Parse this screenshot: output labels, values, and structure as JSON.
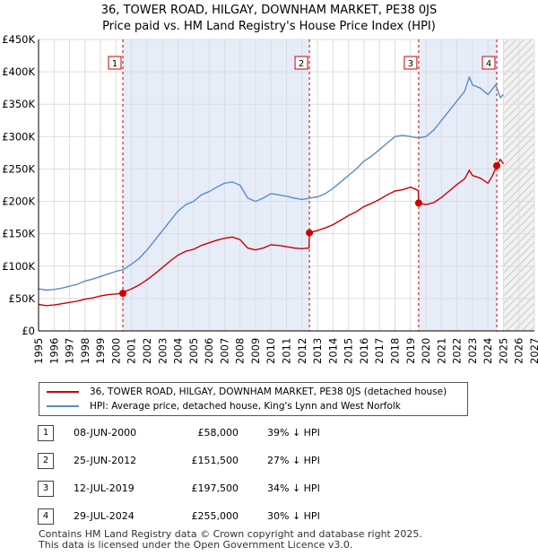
{
  "chart_data": {
    "type": "line",
    "title": "36, TOWER ROAD, HILGAY, DOWNHAM MARKET, PE38 0JS",
    "subtitle": "Price paid vs. HM Land Registry's House Price Index (HPI)",
    "xlim": [
      1995,
      2027
    ],
    "ylim": [
      0,
      450000
    ],
    "yticks": [
      {
        "value": 0,
        "label": "£0"
      },
      {
        "value": 50000,
        "label": "£50K"
      },
      {
        "value": 100000,
        "label": "£100K"
      },
      {
        "value": 150000,
        "label": "£150K"
      },
      {
        "value": 200000,
        "label": "£200K"
      },
      {
        "value": 250000,
        "label": "£250K"
      },
      {
        "value": 300000,
        "label": "£300K"
      },
      {
        "value": 350000,
        "label": "£350K"
      },
      {
        "value": 400000,
        "label": "£400K"
      },
      {
        "value": 450000,
        "label": "£450K"
      }
    ],
    "xticks": [
      "1995",
      "1996",
      "1997",
      "1998",
      "1999",
      "2000",
      "2001",
      "2002",
      "2003",
      "2004",
      "2005",
      "2006",
      "2007",
      "2008",
      "2009",
      "2010",
      "2011",
      "2012",
      "2013",
      "2014",
      "2015",
      "2016",
      "2017",
      "2018",
      "2019",
      "2020",
      "2021",
      "2022",
      "2023",
      "2024",
      "2025",
      "2026",
      "2027"
    ],
    "shaded_periods": [
      [
        2000.44,
        2012.48
      ],
      [
        2019.53,
        2024.57
      ]
    ],
    "forecast_start": 2025.0,
    "series": [
      {
        "name": "HPI: Average price, detached house, King's Lynn and West Norfolk",
        "color": "#5b8cc8",
        "x": [
          1995.0,
          1995.5,
          1996.0,
          1996.5,
          1997.0,
          1997.5,
          1998.0,
          1998.5,
          1999.0,
          1999.5,
          2000.0,
          2000.5,
          2001.0,
          2001.5,
          2002.0,
          2002.5,
          2003.0,
          2003.5,
          2004.0,
          2004.5,
          2005.0,
          2005.5,
          2006.0,
          2006.5,
          2007.0,
          2007.5,
          2008.0,
          2008.5,
          2009.0,
          2009.5,
          2010.0,
          2010.5,
          2011.0,
          2011.5,
          2012.0,
          2012.5,
          2013.0,
          2013.5,
          2014.0,
          2014.5,
          2015.0,
          2015.5,
          2016.0,
          2016.5,
          2017.0,
          2017.5,
          2018.0,
          2018.5,
          2019.0,
          2019.5,
          2020.0,
          2020.5,
          2021.0,
          2021.5,
          2022.0,
          2022.5,
          2022.8,
          2023.0,
          2023.5,
          2024.0,
          2024.5,
          2024.8,
          2025.0
        ],
        "values": [
          65000,
          63000,
          64000,
          66000,
          69000,
          72000,
          77000,
          80000,
          84000,
          88000,
          92000,
          95000,
          103000,
          112000,
          125000,
          140000,
          155000,
          170000,
          185000,
          195000,
          200000,
          210000,
          215000,
          222000,
          228000,
          230000,
          225000,
          205000,
          200000,
          205000,
          212000,
          210000,
          208000,
          205000,
          203000,
          205000,
          207000,
          212000,
          220000,
          230000,
          240000,
          250000,
          262000,
          270000,
          280000,
          290000,
          300000,
          302000,
          300000,
          298000,
          300000,
          310000,
          325000,
          340000,
          355000,
          370000,
          392000,
          380000,
          375000,
          365000,
          380000,
          360000,
          365000
        ]
      },
      {
        "name": "36, TOWER ROAD, HILGAY, DOWNHAM MARKET, PE38 0JS (detached house)",
        "color": "#cc0000",
        "x": [
          1995.0,
          1995.5,
          1996.0,
          1996.5,
          1997.0,
          1997.5,
          1998.0,
          1998.5,
          1999.0,
          1999.5,
          2000.0,
          2000.44,
          2000.5,
          2001.0,
          2001.5,
          2002.0,
          2002.5,
          2003.0,
          2003.5,
          2004.0,
          2004.5,
          2005.0,
          2005.5,
          2006.0,
          2006.5,
          2007.0,
          2007.5,
          2008.0,
          2008.5,
          2009.0,
          2009.5,
          2010.0,
          2010.5,
          2011.0,
          2011.5,
          2012.0,
          2012.45,
          2012.48,
          2013.0,
          2013.5,
          2014.0,
          2014.5,
          2015.0,
          2015.5,
          2016.0,
          2016.5,
          2017.0,
          2017.5,
          2018.0,
          2018.5,
          2019.0,
          2019.5,
          2019.53,
          2020.0,
          2020.5,
          2021.0,
          2021.5,
          2022.0,
          2022.5,
          2022.8,
          2023.0,
          2023.5,
          2024.0,
          2024.3,
          2024.57,
          2024.8,
          2025.0
        ],
        "values": [
          41000,
          39000,
          40000,
          42000,
          44000,
          46000,
          49000,
          51000,
          54000,
          56000,
          57000,
          58000,
          60000,
          65000,
          71000,
          79000,
          88000,
          98000,
          108000,
          117000,
          123000,
          126000,
          132000,
          136000,
          140000,
          143000,
          145000,
          141000,
          128000,
          125000,
          128000,
          133000,
          132000,
          130000,
          128000,
          127000,
          128000,
          151500,
          155000,
          159000,
          164000,
          171000,
          178000,
          184000,
          192000,
          197000,
          203000,
          210000,
          216000,
          218000,
          222000,
          217000,
          197500,
          195000,
          198000,
          206000,
          216000,
          226000,
          235000,
          248000,
          240000,
          236000,
          228000,
          240000,
          255000,
          265000,
          258000
        ]
      }
    ],
    "transactions": [
      {
        "label": "1",
        "x": 2000.44,
        "price": 58000
      },
      {
        "label": "2",
        "x": 2012.48,
        "price": 151500
      },
      {
        "label": "3",
        "x": 2019.53,
        "price": 197500
      },
      {
        "label": "4",
        "x": 2024.57,
        "price": 255000
      }
    ]
  },
  "legend": {
    "property": "36, TOWER ROAD, HILGAY, DOWNHAM MARKET, PE38 0JS (detached house)",
    "hpi": "HPI: Average price, detached house, King's Lynn and West Norfolk"
  },
  "table": [
    {
      "num": "1",
      "date": "08-JUN-2000",
      "price": "£58,000",
      "hpi": "39% ↓ HPI"
    },
    {
      "num": "2",
      "date": "25-JUN-2012",
      "price": "£151,500",
      "hpi": "27% ↓ HPI"
    },
    {
      "num": "3",
      "date": "12-JUL-2019",
      "price": "£197,500",
      "hpi": "34% ↓ HPI"
    },
    {
      "num": "4",
      "date": "29-JUL-2024",
      "price": "£255,000",
      "hpi": "30% ↓ HPI"
    }
  ],
  "footer": {
    "line1": "Contains HM Land Registry data © Crown copyright and database right 2025.",
    "line2": "This data is licensed under the Open Government Licence v3.0."
  },
  "colors": {
    "hpi": "#5b8cc8",
    "property": "#cc0000",
    "shade": "#e6ecf8",
    "grid": "#dddddd"
  }
}
